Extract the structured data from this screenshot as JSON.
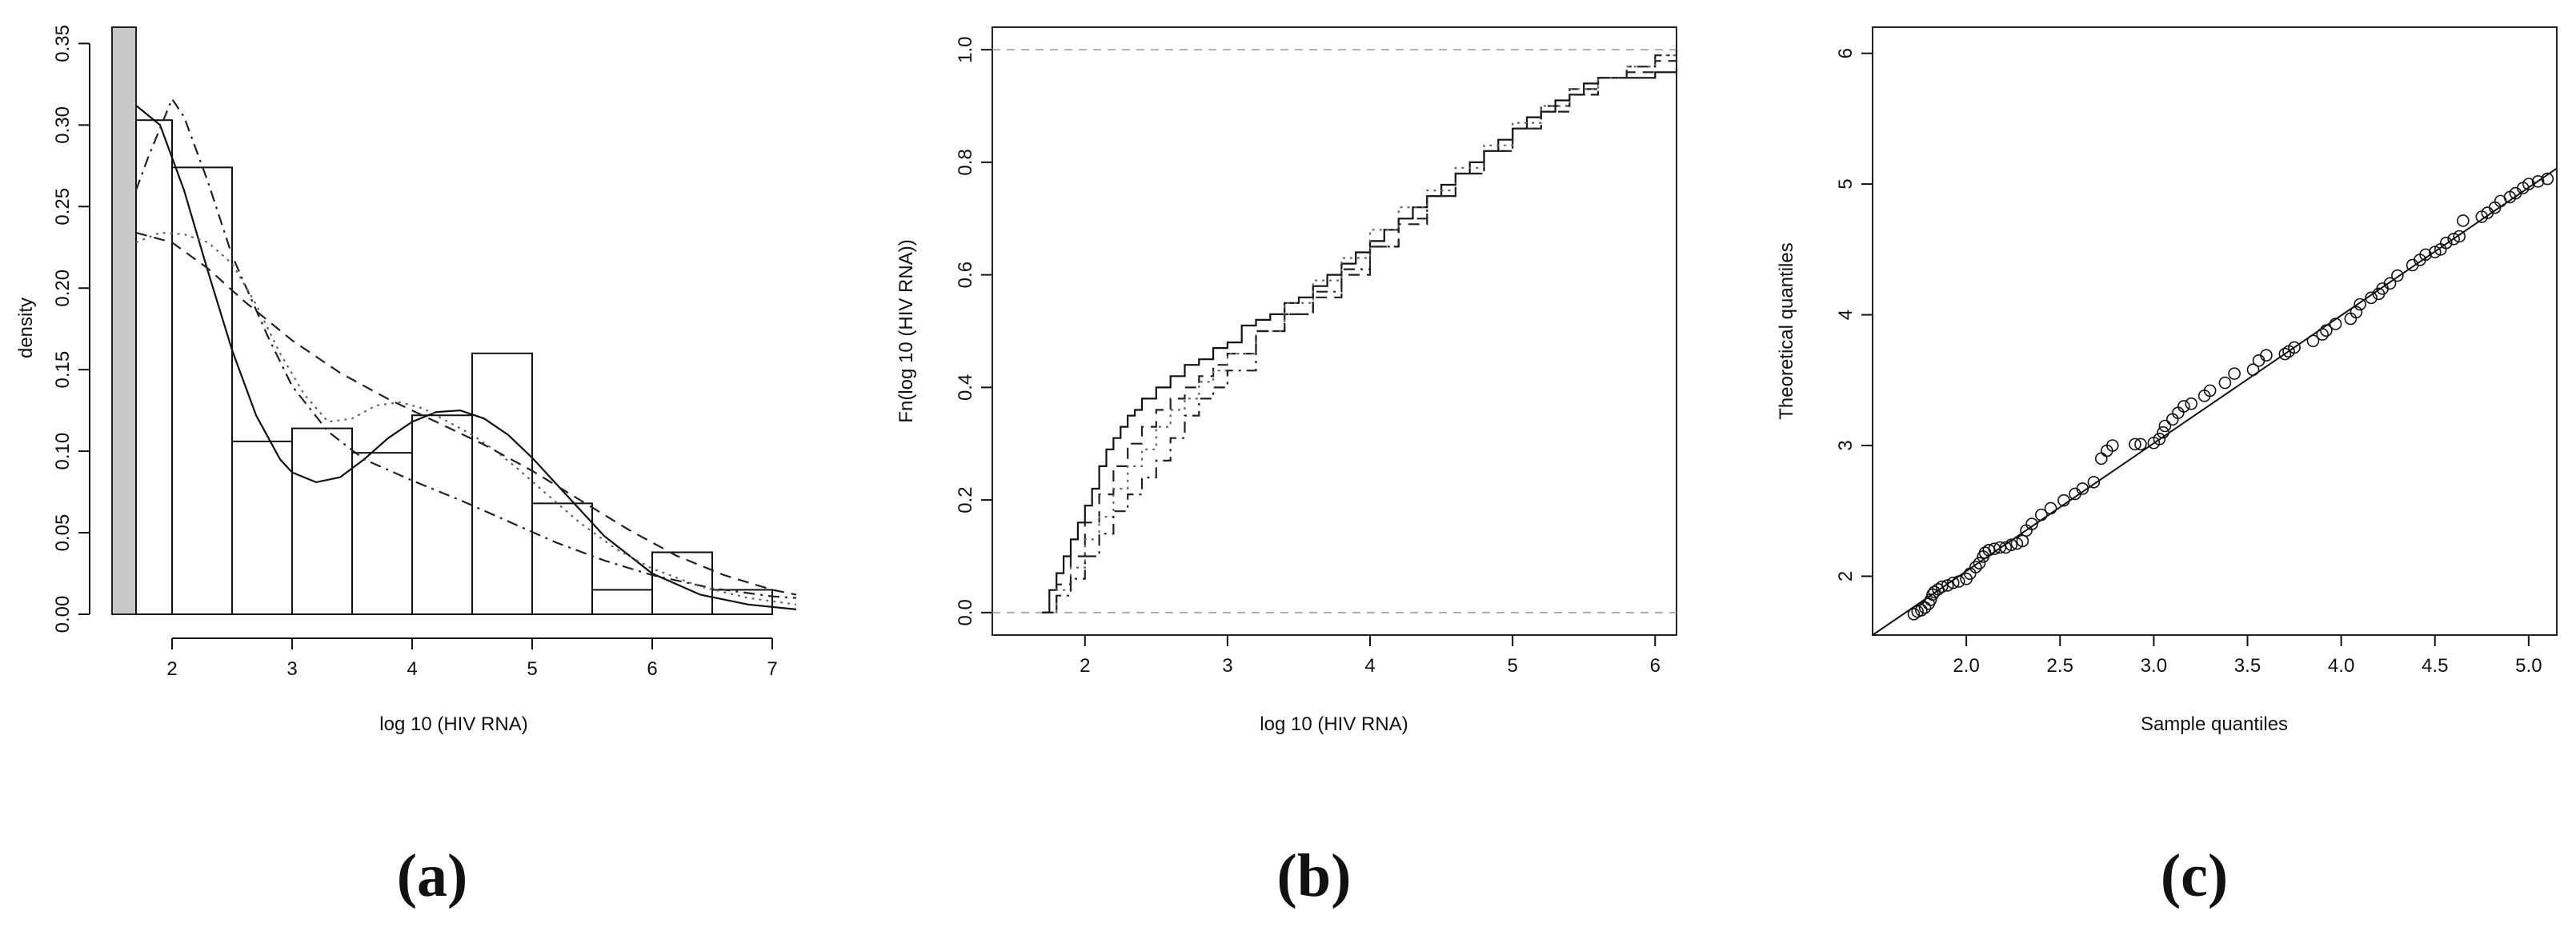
{
  "chart_data": [
    {
      "type": "histogram",
      "panel_label": "(a)",
      "xlabel": "log 10 (HIV RNA)",
      "ylabel": "density",
      "xlim": [
        1.5,
        7.2
      ],
      "ylim": [
        0,
        0.36
      ],
      "x_ticks": [
        "2",
        "3",
        "4",
        "5",
        "6",
        "7"
      ],
      "y_ticks": [
        "0.00",
        "0.05",
        "0.10",
        "0.15",
        "0.20",
        "0.25",
        "0.30",
        "0.35"
      ],
      "censoring_band": [
        1.5,
        1.7
      ],
      "bars": [
        {
          "x0": 1.7,
          "x1": 2.0,
          "density": 0.303
        },
        {
          "x0": 2.0,
          "x1": 2.5,
          "density": 0.274
        },
        {
          "x0": 2.5,
          "x1": 3.0,
          "density": 0.106
        },
        {
          "x0": 3.0,
          "x1": 3.5,
          "density": 0.114
        },
        {
          "x0": 3.5,
          "x1": 4.0,
          "density": 0.099
        },
        {
          "x0": 4.0,
          "x1": 4.5,
          "density": 0.122
        },
        {
          "x0": 4.5,
          "x1": 5.0,
          "density": 0.16
        },
        {
          "x0": 5.0,
          "x1": 5.5,
          "density": 0.068
        },
        {
          "x0": 5.5,
          "x1": 6.0,
          "density": 0.015
        },
        {
          "x0": 6.0,
          "x1": 6.5,
          "density": 0.038
        },
        {
          "x0": 6.5,
          "x1": 7.0,
          "density": 0.015
        }
      ],
      "curves": [
        {
          "style": "solid",
          "x": [
            1.7,
            1.9,
            2.1,
            2.3,
            2.5,
            2.7,
            2.9,
            3.0,
            3.2,
            3.4,
            3.6,
            3.8,
            4.0,
            4.2,
            4.4,
            4.6,
            4.8,
            5.0,
            5.3,
            5.6,
            6.0,
            6.4,
            6.8,
            7.2
          ],
          "y": [
            0.312,
            0.3,
            0.26,
            0.21,
            0.162,
            0.122,
            0.095,
            0.087,
            0.081,
            0.084,
            0.095,
            0.108,
            0.118,
            0.124,
            0.125,
            0.12,
            0.11,
            0.096,
            0.072,
            0.048,
            0.025,
            0.012,
            0.006,
            0.003
          ]
        },
        {
          "style": "dashdot",
          "x": [
            1.7,
            1.8,
            2.0,
            2.1,
            2.3,
            2.5,
            2.8,
            3.0,
            3.3,
            3.6,
            4.0,
            4.4,
            4.8,
            5.2,
            5.6,
            6.0,
            6.5,
            7.0,
            7.2
          ],
          "y": [
            0.26,
            0.28,
            0.316,
            0.305,
            0.265,
            0.22,
            0.17,
            0.14,
            0.112,
            0.095,
            0.082,
            0.07,
            0.057,
            0.044,
            0.033,
            0.024,
            0.016,
            0.011,
            0.01
          ]
        },
        {
          "style": "dotted",
          "x": [
            1.7,
            1.9,
            2.1,
            2.3,
            2.5,
            2.7,
            2.9,
            3.1,
            3.3,
            3.5,
            3.7,
            3.9,
            4.1,
            4.3,
            4.5,
            4.7,
            4.9,
            5.1,
            5.4,
            5.7,
            6.0,
            6.4,
            6.8,
            7.2
          ],
          "y": [
            0.228,
            0.234,
            0.233,
            0.228,
            0.215,
            0.19,
            0.16,
            0.135,
            0.118,
            0.12,
            0.128,
            0.13,
            0.126,
            0.118,
            0.11,
            0.1,
            0.088,
            0.075,
            0.056,
            0.04,
            0.028,
            0.017,
            0.01,
            0.006
          ]
        },
        {
          "style": "dashed",
          "x": [
            1.7,
            2.0,
            2.3,
            2.6,
            3.0,
            3.4,
            3.8,
            4.2,
            4.6,
            5.0,
            5.4,
            5.8,
            6.2,
            6.6,
            7.0,
            7.2
          ],
          "y": [
            0.234,
            0.228,
            0.212,
            0.192,
            0.168,
            0.148,
            0.132,
            0.118,
            0.104,
            0.088,
            0.07,
            0.052,
            0.036,
            0.024,
            0.015,
            0.012
          ]
        }
      ]
    },
    {
      "type": "ecdf",
      "panel_label": "(b)",
      "xlabel": "log 10 (HIV RNA)",
      "ylabel": "Fn(log 10 (HIV RNA))",
      "xlim": [
        1.35,
        6.15
      ],
      "ylim": [
        -0.04,
        1.04
      ],
      "x_ticks": [
        "2",
        "3",
        "4",
        "5",
        "6"
      ],
      "y_ticks": [
        "0.0",
        "0.2",
        "0.4",
        "0.6",
        "0.8",
        "1.0"
      ],
      "reference_lines": [
        0,
        1
      ],
      "series": [
        {
          "style": "solid",
          "x": [
            1.7,
            1.75,
            1.8,
            1.85,
            1.9,
            1.95,
            2.0,
            2.05,
            2.1,
            2.15,
            2.2,
            2.25,
            2.3,
            2.35,
            2.4,
            2.5,
            2.6,
            2.7,
            2.8,
            2.9,
            3.0,
            3.1,
            3.2,
            3.3,
            3.4,
            3.5,
            3.6,
            3.7,
            3.8,
            3.9,
            4.0,
            4.1,
            4.2,
            4.3,
            4.4,
            4.5,
            4.6,
            4.7,
            4.8,
            4.9,
            5.0,
            5.1,
            5.2,
            5.3,
            5.4,
            5.5,
            5.6,
            5.7,
            5.8,
            6.0,
            6.15
          ],
          "y": [
            0.0,
            0.04,
            0.07,
            0.1,
            0.13,
            0.16,
            0.19,
            0.22,
            0.26,
            0.29,
            0.31,
            0.33,
            0.35,
            0.36,
            0.38,
            0.4,
            0.42,
            0.44,
            0.45,
            0.47,
            0.48,
            0.51,
            0.52,
            0.53,
            0.55,
            0.56,
            0.58,
            0.6,
            0.62,
            0.64,
            0.66,
            0.68,
            0.7,
            0.72,
            0.74,
            0.76,
            0.78,
            0.8,
            0.82,
            0.84,
            0.86,
            0.88,
            0.89,
            0.91,
            0.92,
            0.94,
            0.95,
            0.95,
            0.95,
            0.96,
            0.97
          ]
        },
        {
          "style": "dashed",
          "x": [
            1.7,
            1.8,
            1.9,
            2.0,
            2.1,
            2.2,
            2.3,
            2.4,
            2.5,
            2.6,
            2.7,
            2.8,
            2.9,
            3.0,
            3.2,
            3.4,
            3.6,
            3.8,
            4.0,
            4.2,
            4.4,
            4.6,
            4.8,
            5.0,
            5.2,
            5.4,
            5.6,
            5.8,
            6.0,
            6.15
          ],
          "y": [
            0.0,
            0.05,
            0.1,
            0.16,
            0.21,
            0.26,
            0.3,
            0.33,
            0.36,
            0.38,
            0.4,
            0.42,
            0.44,
            0.46,
            0.5,
            0.53,
            0.56,
            0.6,
            0.65,
            0.69,
            0.74,
            0.78,
            0.82,
            0.86,
            0.9,
            0.93,
            0.95,
            0.96,
            0.98,
            0.99
          ]
        },
        {
          "style": "dotted",
          "x": [
            1.7,
            1.8,
            1.9,
            2.0,
            2.1,
            2.2,
            2.3,
            2.4,
            2.5,
            2.6,
            2.7,
            2.8,
            2.9,
            3.0,
            3.2,
            3.4,
            3.6,
            3.8,
            4.0,
            4.2,
            4.4,
            4.6,
            4.8,
            5.0,
            5.2,
            5.4,
            5.6,
            5.8,
            6.0,
            6.15
          ],
          "y": [
            0.0,
            0.04,
            0.08,
            0.13,
            0.17,
            0.22,
            0.26,
            0.29,
            0.33,
            0.36,
            0.38,
            0.41,
            0.43,
            0.46,
            0.5,
            0.55,
            0.59,
            0.63,
            0.68,
            0.72,
            0.75,
            0.79,
            0.83,
            0.87,
            0.9,
            0.93,
            0.95,
            0.97,
            0.99,
            1.0
          ]
        },
        {
          "style": "dashdot",
          "x": [
            1.7,
            1.8,
            1.9,
            2.0,
            2.1,
            2.2,
            2.3,
            2.4,
            2.5,
            2.6,
            2.7,
            2.8,
            2.9,
            3.0,
            3.2,
            3.4,
            3.6,
            3.8,
            4.0,
            4.2,
            4.4,
            4.6,
            4.8,
            5.0,
            5.2,
            5.4,
            5.6,
            5.8,
            6.0,
            6.15
          ],
          "y": [
            0.0,
            0.03,
            0.06,
            0.1,
            0.14,
            0.18,
            0.21,
            0.24,
            0.27,
            0.31,
            0.35,
            0.38,
            0.4,
            0.43,
            0.5,
            0.53,
            0.57,
            0.61,
            0.65,
            0.7,
            0.74,
            0.78,
            0.82,
            0.86,
            0.89,
            0.92,
            0.95,
            0.97,
            0.99,
            1.0
          ]
        }
      ]
    },
    {
      "type": "scatter",
      "panel_label": "(c)",
      "xlabel": "Sample quantiles",
      "ylabel": "Theoretical quantiles",
      "xlim": [
        1.5,
        5.15
      ],
      "ylim": [
        1.55,
        6.2
      ],
      "x_ticks": [
        "2.0",
        "2.5",
        "3.0",
        "3.5",
        "4.0",
        "4.5",
        "5.0"
      ],
      "y_ticks": [
        "2",
        "3",
        "4",
        "5",
        "6"
      ],
      "reference_line": {
        "x": [
          1.5,
          5.15
        ],
        "y": [
          1.55,
          5.12
        ]
      },
      "points": {
        "x": [
          1.72,
          1.74,
          1.76,
          1.78,
          1.8,
          1.81,
          1.82,
          1.83,
          1.85,
          1.87,
          1.9,
          1.93,
          1.96,
          2.0,
          2.02,
          2.05,
          2.07,
          2.09,
          2.1,
          2.12,
          2.15,
          2.18,
          2.21,
          2.24,
          2.27,
          2.3,
          2.32,
          2.35,
          2.4,
          2.45,
          2.52,
          2.58,
          2.62,
          2.68,
          2.72,
          2.75,
          2.78,
          2.9,
          2.93,
          3.0,
          3.03,
          3.05,
          3.06,
          3.1,
          3.13,
          3.16,
          3.2,
          3.27,
          3.3,
          3.38,
          3.43,
          3.53,
          3.56,
          3.6,
          3.7,
          3.72,
          3.75,
          3.85,
          3.9,
          3.92,
          3.97,
          4.05,
          4.08,
          4.1,
          4.16,
          4.2,
          4.22,
          4.26,
          4.3,
          4.38,
          4.42,
          4.45,
          4.5,
          4.53,
          4.56,
          4.6,
          4.63,
          4.65,
          4.75,
          4.78,
          4.82,
          4.85,
          4.9,
          4.93,
          4.97,
          5.0,
          5.05,
          5.1
        ],
        "y": [
          1.71,
          1.73,
          1.74,
          1.76,
          1.79,
          1.82,
          1.86,
          1.88,
          1.9,
          1.92,
          1.93,
          1.95,
          1.96,
          1.98,
          2.02,
          2.07,
          2.1,
          2.15,
          2.18,
          2.2,
          2.21,
          2.22,
          2.22,
          2.24,
          2.25,
          2.27,
          2.35,
          2.4,
          2.47,
          2.52,
          2.58,
          2.63,
          2.67,
          2.72,
          2.9,
          2.96,
          3.0,
          3.01,
          3.01,
          3.02,
          3.05,
          3.1,
          3.15,
          3.2,
          3.25,
          3.3,
          3.32,
          3.38,
          3.42,
          3.48,
          3.55,
          3.58,
          3.65,
          3.69,
          3.7,
          3.72,
          3.75,
          3.8,
          3.85,
          3.88,
          3.93,
          3.97,
          4.02,
          4.08,
          4.13,
          4.16,
          4.2,
          4.24,
          4.3,
          4.38,
          4.42,
          4.46,
          4.48,
          4.5,
          4.55,
          4.58,
          4.6,
          4.72,
          4.75,
          4.78,
          4.82,
          4.87,
          4.9,
          4.93,
          4.97,
          5.0,
          5.02,
          5.04
        ]
      }
    }
  ]
}
